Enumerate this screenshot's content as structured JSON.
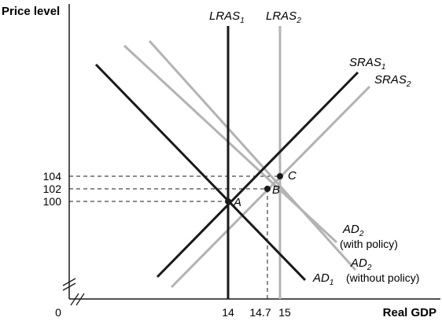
{
  "axes": {
    "y_label": "Price level",
    "x_label": "Real GDP",
    "origin_label": "0"
  },
  "y_ticks": [
    {
      "value": 104,
      "label": "104"
    },
    {
      "value": 102,
      "label": "102"
    },
    {
      "value": 100,
      "label": "100"
    }
  ],
  "x_ticks": [
    {
      "value": 14,
      "label": "14"
    },
    {
      "value": 14.7,
      "label": "14.7"
    },
    {
      "value": 15,
      "label": "15"
    }
  ],
  "curves": {
    "lras1": {
      "main": "LRAS",
      "sub": "1"
    },
    "lras2": {
      "main": "LRAS",
      "sub": "2"
    },
    "sras1": {
      "main": "SRAS",
      "sub": "1"
    },
    "sras2": {
      "main": "SRAS",
      "sub": "2"
    },
    "ad1": {
      "main": "AD",
      "sub": "1"
    },
    "ad2_with": {
      "main": "AD",
      "sub": "2",
      "note": "(with policy)"
    },
    "ad2_without": {
      "main": "AD",
      "sub": "2",
      "note": "(without policy)"
    }
  },
  "points": [
    {
      "label": "A",
      "x": 14,
      "y": 100
    },
    {
      "label": "B",
      "x": 14.7,
      "y": 102
    },
    {
      "label": "C",
      "x": 15,
      "y": 104
    }
  ],
  "colors": {
    "black": "#1a1a1a",
    "gray": "#b3b3b3"
  }
}
